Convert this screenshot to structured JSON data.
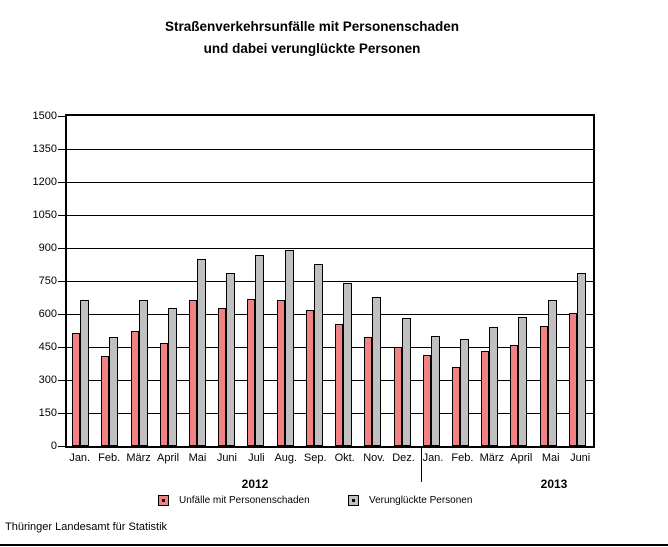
{
  "title": {
    "line1": "Straßenverkehrsunfälle mit Personenschaden",
    "line2": "und dabei verunglückte Personen"
  },
  "footer": {
    "source": "Thüringer Landesamt für Statistik"
  },
  "legend": [
    {
      "label": "Unfälle mit Personenschaden",
      "color": "#F28181"
    },
    {
      "label": "Verunglückte Personen",
      "color": "#C0C0C0"
    }
  ],
  "chart_data": {
    "type": "bar",
    "title": "Straßenverkehrsunfälle mit Personenschaden und dabei verunglückte Personen",
    "xlabel": "",
    "ylabel": "",
    "ylim": [
      0,
      1500
    ],
    "yticks": [
      0,
      150,
      300,
      450,
      600,
      750,
      900,
      1050,
      1200,
      1350,
      1500
    ],
    "grid": "horizontal",
    "legend_position": "bottom",
    "categories": [
      "Jan.",
      "Feb.",
      "März",
      "April",
      "Mai",
      "Juni",
      "Juli",
      "Aug.",
      "Sep.",
      "Okt.",
      "Nov.",
      "Dez.",
      "Jan.",
      "Feb.",
      "März",
      "April",
      "Mai",
      "Juni"
    ],
    "group_labels": [
      "2012",
      "2013"
    ],
    "group_split_index": 12,
    "series": [
      {
        "name": "Unfälle mit Personenschaden",
        "color": "#F28181",
        "values": [
          515,
          410,
          525,
          470,
          665,
          625,
          670,
          665,
          620,
          555,
          495,
          450,
          415,
          360,
          430,
          460,
          545,
          605
        ]
      },
      {
        "name": "Verunglückte Personen",
        "color": "#C0C0C0",
        "values": [
          665,
          495,
          665,
          625,
          850,
          785,
          870,
          890,
          825,
          740,
          675,
          580,
          500,
          485,
          540,
          585,
          665,
          785
        ]
      }
    ]
  }
}
